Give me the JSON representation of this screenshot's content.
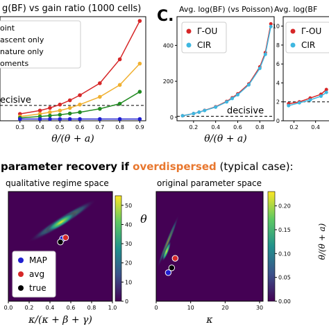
{
  "panel_b_title": "g(BF) vs gain ratio (1000 cells)",
  "panel_c_letter": "C.",
  "panel_c_title": "Avg. log(BF) (vs Poisson)",
  "panel_c2_title": "Avg. log(BF",
  "section_heading": {
    "prefix": "parameter recovery if ",
    "highlight": "overdispersed",
    "suffix": " (typical case):",
    "highlight_color": "#e8772e"
  },
  "panel_d_title": "qualitative regime space",
  "panel_e_title": "original parameter space",
  "colors": {
    "red": "#d62728",
    "orange": "#f0b030",
    "green": "#228b22",
    "blue": "#1f1fd0",
    "cyan": "#3fb7e0",
    "viridis_bg": "#440154"
  },
  "chart_data": [
    {
      "type": "line",
      "id": "panel-b",
      "title": "g(BF) vs gain ratio (1000 cells)",
      "xlabel": "θ/(θ + a)",
      "ylabel": "",
      "xlim": [
        0.2,
        0.93
      ],
      "ylim": [
        -2,
        120
      ],
      "x": [
        0.3,
        0.4,
        0.45,
        0.5,
        0.55,
        0.6,
        0.7,
        0.8,
        0.9
      ],
      "xticks": [
        "0.3",
        "0.4",
        "0.5",
        "0.6",
        "0.7",
        "0.8",
        "0.9"
      ],
      "series": [
        {
          "name": "oint",
          "color": "#d62728",
          "values": [
            6,
            10,
            13,
            17,
            22,
            28,
            42,
            70,
            115
          ]
        },
        {
          "name": "ascent only",
          "color": "#f0b030",
          "values": [
            3,
            6,
            8,
            10,
            13,
            17,
            26,
            40,
            65
          ]
        },
        {
          "name": "nature only",
          "color": "#228b22",
          "values": [
            1.5,
            3,
            4,
            5,
            6.5,
            8,
            12,
            18,
            32
          ]
        },
        {
          "name": "oments",
          "color": "#1f1fd0",
          "values": [
            0,
            0,
            0,
            0,
            0,
            0,
            0,
            0,
            0
          ]
        }
      ],
      "reference_line": {
        "label": "ecisive",
        "y": 16,
        "style": "dashed"
      },
      "legend": "top-left"
    },
    {
      "type": "line",
      "id": "panel-c",
      "title": "Avg. log(BF) (vs Poisson)",
      "xlabel": "θ/(θ + a)",
      "ylabel": "",
      "xlim": [
        0.05,
        0.93
      ],
      "ylim": [
        -20,
        560
      ],
      "yticks": [
        "0",
        "200",
        "400"
      ],
      "xticks": [
        "0.2",
        "0.4",
        "0.6",
        "0.8"
      ],
      "x": [
        0.1,
        0.2,
        0.25,
        0.3,
        0.4,
        0.5,
        0.55,
        0.6,
        0.7,
        0.8,
        0.85,
        0.9
      ],
      "series": [
        {
          "name": "Γ-OU",
          "color": "#d62728",
          "values": [
            8,
            20,
            28,
            38,
            58,
            88,
            108,
            130,
            185,
            280,
            360,
            520
          ]
        },
        {
          "name": "CIR",
          "color": "#3fb7e0",
          "values": [
            8,
            20,
            28,
            37,
            56,
            85,
            104,
            125,
            180,
            272,
            350,
            505
          ]
        }
      ],
      "reference_line": {
        "label": "decisive",
        "y": 5,
        "style": "dashed"
      },
      "legend": "top-left"
    },
    {
      "type": "line",
      "id": "panel-c2",
      "title": "Avg. log(BF",
      "xlabel": "",
      "ylabel": "",
      "xlim": [
        0.1,
        0.55
      ],
      "ylim": [
        0,
        11
      ],
      "yticks": [
        "0",
        "2",
        "4",
        "6",
        "8",
        "10"
      ],
      "xticks": [
        "0.2",
        "0.4"
      ],
      "x": [
        0.15,
        0.25,
        0.35,
        0.45,
        0.5
      ],
      "series": [
        {
          "name": "Γ-OU",
          "color": "#d62728",
          "values": [
            1.8,
            2.0,
            2.4,
            2.8,
            3.3
          ]
        },
        {
          "name": "CIR",
          "color": "#3fb7e0",
          "values": [
            1.6,
            1.9,
            2.2,
            2.6,
            3.0
          ]
        }
      ],
      "reference_line": {
        "label": "",
        "y": 2,
        "style": "dashed"
      },
      "legend": "top-left"
    },
    {
      "type": "heatmap",
      "id": "panel-d",
      "title": "qualitative regime space",
      "xlabel": "κ/(κ + β + γ)",
      "ylabel": "",
      "xlim": [
        0,
        1
      ],
      "xticks": [
        "0.0",
        "0.2",
        "0.4",
        "0.6",
        "0.8",
        "1.0"
      ],
      "colorbar": {
        "min": 0,
        "max": 55,
        "ticks": [
          "0",
          "10",
          "20",
          "30",
          "40",
          "50"
        ]
      },
      "points": [
        {
          "name": "MAP",
          "color": "#1f1fd0",
          "x": 0.52,
          "y": 0.57
        },
        {
          "name": "avg",
          "color": "#d62728",
          "x": 0.55,
          "y": 0.58
        },
        {
          "name": "true",
          "color": "#000000",
          "x": 0.5,
          "y": 0.54
        }
      ],
      "legend": "bottom-left"
    },
    {
      "type": "heatmap",
      "id": "panel-e",
      "title": "original parameter space",
      "xlabel": "κ",
      "ylabel": "θ",
      "xlim": [
        0,
        31
      ],
      "xticks": [
        "0",
        "10",
        "20",
        "30"
      ],
      "colorbar": {
        "min": 0,
        "max": 0.23,
        "ticks": [
          "0.00",
          "0.05",
          "0.10",
          "0.15",
          "0.20"
        ]
      },
      "points": [
        {
          "name": "MAP",
          "color": "#1f1fd0",
          "x": 3.5,
          "y": 0.3
        },
        {
          "name": "avg",
          "color": "#d62728",
          "x": 5.5,
          "y": 0.45
        },
        {
          "name": "true",
          "color": "#000000",
          "x": 4.5,
          "y": 0.35
        }
      ]
    }
  ],
  "panel_f_ylabel": "θ/(θ + a)"
}
